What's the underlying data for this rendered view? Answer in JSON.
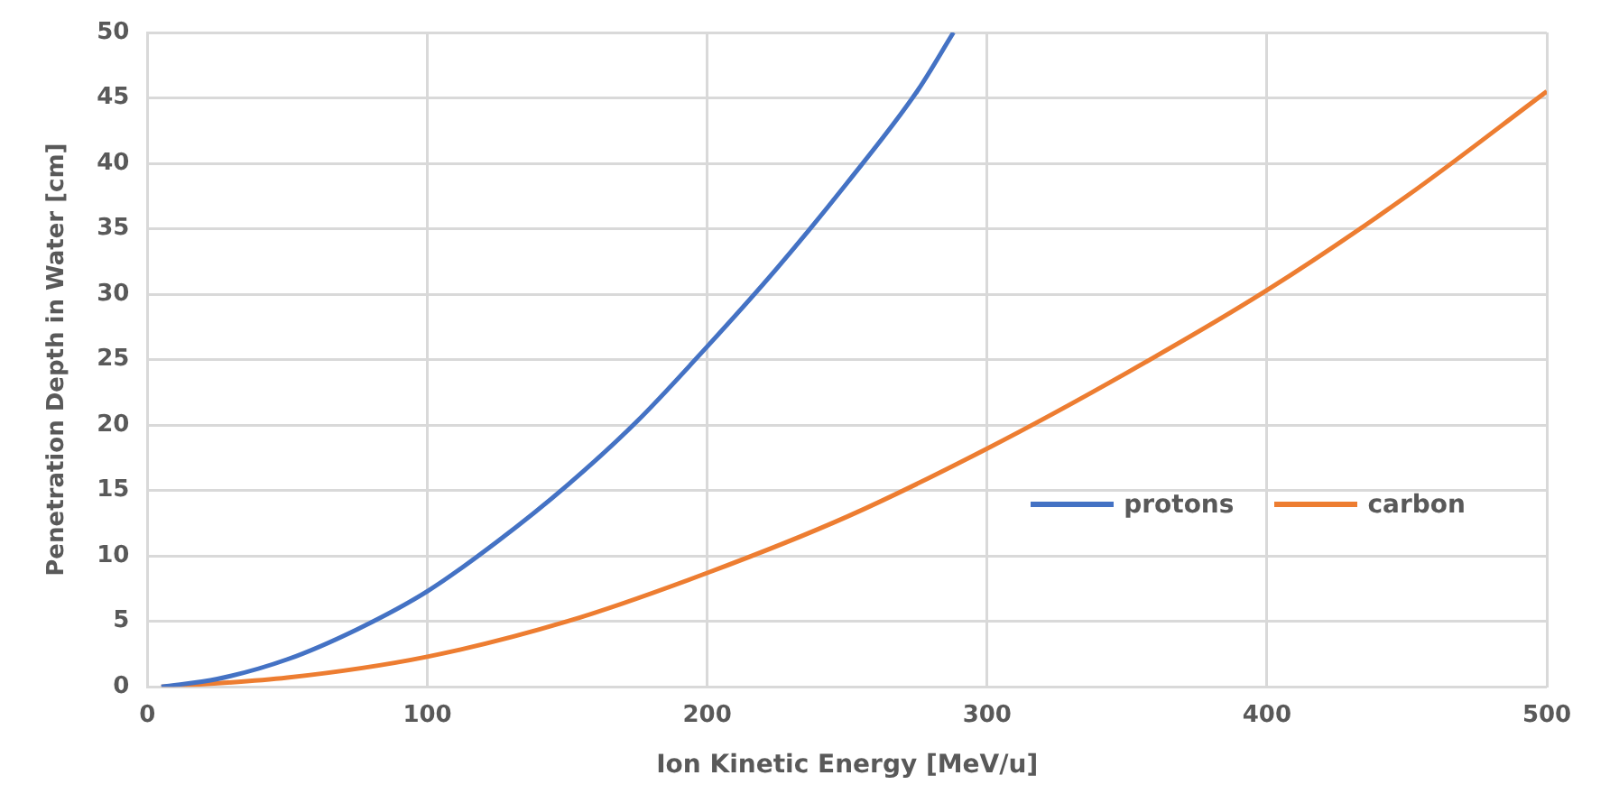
{
  "chart_data": {
    "type": "line",
    "xlabel": "Ion Kinetic Energy [MeV/u]",
    "ylabel": "Penetration Depth in Water [cm]",
    "xlim": [
      0,
      500
    ],
    "xticks": [
      0,
      100,
      200,
      300,
      400,
      500
    ],
    "ylim": [
      0,
      50
    ],
    "yticks": [
      0,
      5,
      10,
      15,
      20,
      25,
      30,
      35,
      40,
      45,
      50
    ],
    "grid": true,
    "legend": "bottom right",
    "marker": "none",
    "line_style": "solid",
    "series": [
      {
        "name": "protons",
        "color": "#4472c4",
        "x": [
          5,
          25,
          50,
          75,
          100,
          125,
          150,
          175,
          200,
          225,
          250,
          275,
          288
        ],
        "values": [
          0,
          0.6,
          2.1,
          4.4,
          7.3,
          11.1,
          15.4,
          20.3,
          26,
          32,
          38.5,
          45.5,
          50
        ]
      },
      {
        "name": "carbon",
        "color": "#ed7d31",
        "x": [
          5,
          50,
          100,
          150,
          200,
          250,
          300,
          350,
          400,
          450,
          500
        ],
        "values": [
          0,
          0.7,
          2.3,
          5,
          8.7,
          13,
          18.2,
          24,
          30.3,
          37.5,
          45.5
        ]
      }
    ]
  }
}
